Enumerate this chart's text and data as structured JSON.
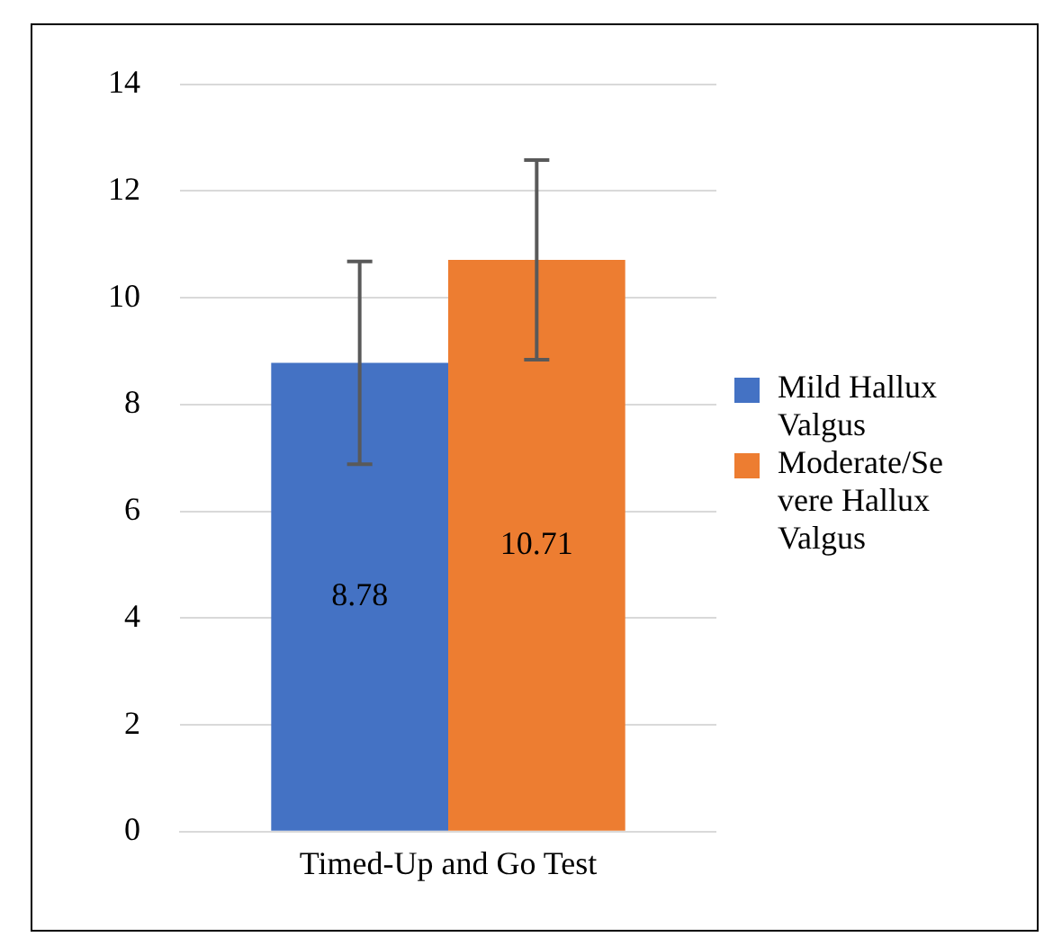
{
  "chart_data": {
    "type": "bar",
    "categories": [
      "Timed-Up and Go Test"
    ],
    "series": [
      {
        "name": "Mild Hallux Valgus",
        "color": "#4472c4",
        "values": [
          8.78
        ],
        "errors": [
          1.9
        ]
      },
      {
        "name": "Moderate/Severe Hallux Valgus",
        "color": "#ed7d31",
        "values": [
          10.71
        ],
        "errors": [
          1.87
        ]
      }
    ],
    "ylim": [
      0,
      14
    ],
    "yticks": [
      0,
      2,
      4,
      6,
      8,
      10,
      12,
      14
    ],
    "grid": "y",
    "legend": "right",
    "data_labels": true
  }
}
